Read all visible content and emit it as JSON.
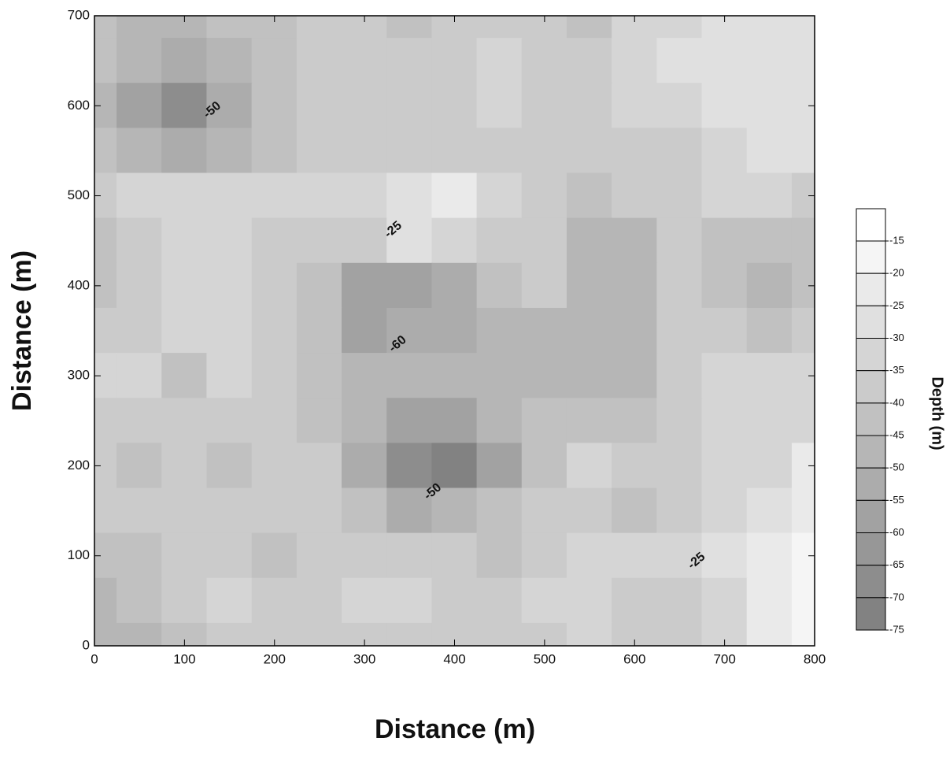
{
  "chart_data": {
    "type": "contour",
    "xlabel": "Distance (m)",
    "ylabel": "Distance (m)",
    "xlim": [
      0,
      800
    ],
    "ylim": [
      0,
      700
    ],
    "xticks": [
      0,
      100,
      200,
      300,
      400,
      500,
      600,
      700,
      800
    ],
    "yticks": [
      0,
      100,
      200,
      300,
      400,
      500,
      600,
      700
    ],
    "x": [
      0,
      50,
      100,
      150,
      200,
      250,
      300,
      350,
      400,
      450,
      500,
      550,
      600,
      650,
      700,
      750,
      800
    ],
    "y": [
      700,
      650,
      600,
      550,
      500,
      450,
      400,
      350,
      300,
      250,
      200,
      150,
      100,
      50,
      0
    ],
    "z": [
      [
        -40,
        -45,
        -45,
        -40,
        -40,
        -35,
        -35,
        -40,
        -35,
        -35,
        -35,
        -40,
        -30,
        -30,
        -25,
        -25,
        -25
      ],
      [
        -40,
        -45,
        -50,
        -45,
        -40,
        -35,
        -35,
        -35,
        -35,
        -30,
        -35,
        -35,
        -30,
        -25,
        -25,
        -25,
        -25
      ],
      [
        -45,
        -55,
        -65,
        -50,
        -40,
        -35,
        -35,
        -35,
        -35,
        -30,
        -35,
        -35,
        -30,
        -30,
        -25,
        -25,
        -25
      ],
      [
        -40,
        -45,
        -50,
        -45,
        -40,
        -35,
        -35,
        -35,
        -35,
        -35,
        -35,
        -35,
        -35,
        -35,
        -30,
        -25,
        -25
      ],
      [
        -35,
        -30,
        -30,
        -30,
        -30,
        -30,
        -30,
        -25,
        -20,
        -30,
        -35,
        -40,
        -35,
        -35,
        -30,
        -30,
        -35
      ],
      [
        -40,
        -35,
        -30,
        -30,
        -35,
        -35,
        -35,
        -25,
        -30,
        -35,
        -35,
        -45,
        -45,
        -35,
        -40,
        -40,
        -40
      ],
      [
        -40,
        -35,
        -30,
        -30,
        -35,
        -40,
        -55,
        -55,
        -50,
        -40,
        -35,
        -45,
        -45,
        -35,
        -40,
        -45,
        -40
      ],
      [
        -35,
        -35,
        -30,
        -30,
        -35,
        -40,
        -55,
        -50,
        -50,
        -45,
        -45,
        -45,
        -45,
        -35,
        -35,
        -40,
        -35
      ],
      [
        -30,
        -30,
        -40,
        -30,
        -35,
        -40,
        -45,
        -45,
        -45,
        -45,
        -45,
        -45,
        -45,
        -35,
        -30,
        -30,
        -30
      ],
      [
        -35,
        -35,
        -35,
        -35,
        -35,
        -40,
        -45,
        -55,
        -55,
        -45,
        -40,
        -40,
        -40,
        -35,
        -30,
        -30,
        -30
      ],
      [
        -35,
        -40,
        -35,
        -40,
        -35,
        -35,
        -50,
        -65,
        -70,
        -55,
        -40,
        -30,
        -35,
        -35,
        -30,
        -30,
        -20
      ],
      [
        -35,
        -35,
        -35,
        -35,
        -35,
        -35,
        -40,
        -50,
        -45,
        -40,
        -35,
        -35,
        -40,
        -35,
        -30,
        -25,
        -20
      ],
      [
        -40,
        -40,
        -35,
        -35,
        -40,
        -35,
        -35,
        -35,
        -35,
        -40,
        -35,
        -30,
        -30,
        -30,
        -25,
        -20,
        -15
      ],
      [
        -45,
        -40,
        -35,
        -30,
        -35,
        -35,
        -30,
        -30,
        -35,
        -35,
        -30,
        -30,
        -35,
        -35,
        -30,
        -20,
        -15
      ],
      [
        -45,
        -45,
        -40,
        -35,
        -35,
        -35,
        -35,
        -35,
        -35,
        -35,
        -35,
        -30,
        -35,
        -35,
        -30,
        -20,
        -15
      ]
    ],
    "annotations": [
      {
        "text": "-50",
        "x": 131,
        "y": 595
      },
      {
        "text": "-25",
        "x": 332,
        "y": 462
      },
      {
        "text": "-60",
        "x": 337,
        "y": 335
      },
      {
        "text": "-50",
        "x": 376,
        "y": 171
      },
      {
        "text": "-25",
        "x": 669,
        "y": 94
      }
    ],
    "colorbar": {
      "label": "Depth (m)",
      "ticks": [
        -15,
        -20,
        -25,
        -30,
        -35,
        -40,
        -45,
        -50,
        -55,
        -60,
        -65,
        -70,
        -75
      ]
    }
  }
}
